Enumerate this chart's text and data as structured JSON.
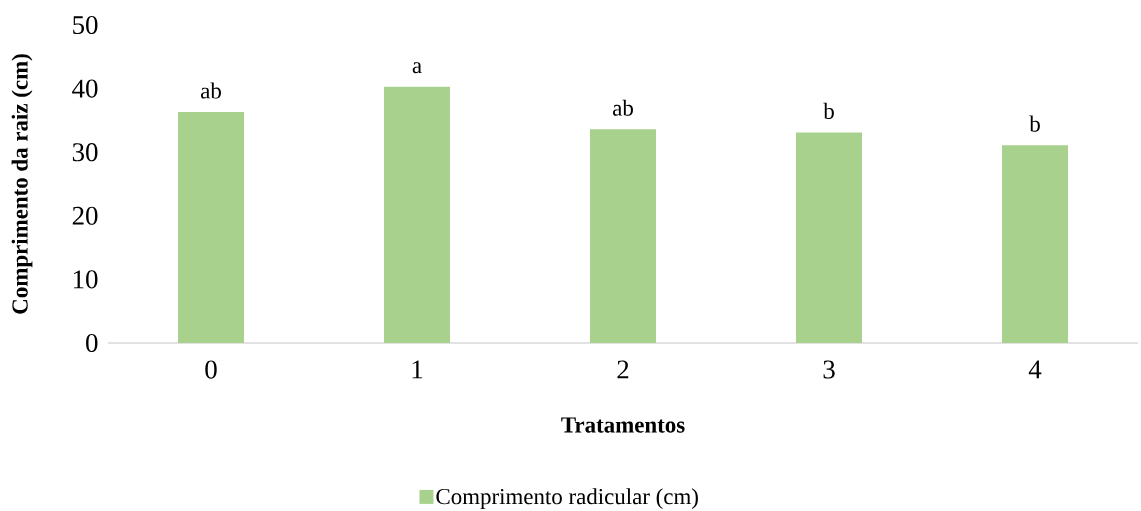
{
  "chart_data": {
    "type": "bar",
    "xlabel": "Tratamentos",
    "ylabel": "Comprimento da raiz (cm)",
    "categories": [
      "0",
      "1",
      "2",
      "3",
      "4"
    ],
    "series": [
      {
        "name": "Comprimento radicular (cm)",
        "color": "#a9d18e",
        "values": [
          36.3,
          40.3,
          33.6,
          33.1,
          31.1
        ]
      }
    ],
    "ylim": [
      0,
      50
    ],
    "yticks": [
      0,
      10,
      20,
      30,
      40,
      50
    ],
    "grid": false,
    "legend": "bottom",
    "annotations": [
      {
        "text": "ab",
        "x": "0",
        "y": 36.3
      },
      {
        "text": "a",
        "x": "1",
        "y": 40.3
      },
      {
        "text": "ab",
        "x": "2",
        "y": 33.6
      },
      {
        "text": "b",
        "x": "3",
        "y": 33.1
      },
      {
        "text": "b",
        "x": "4",
        "y": 31.1
      }
    ]
  }
}
